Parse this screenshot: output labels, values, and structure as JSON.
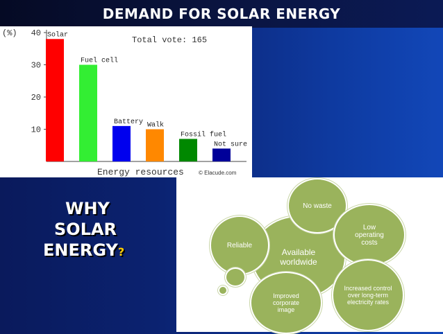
{
  "slide": {
    "title": "DEMAND FOR SOLAR ENERGY",
    "why_line1": "WHY",
    "why_line2": "SOLAR",
    "why_line3": "ENERGY",
    "why_mark": "?"
  },
  "chart_data": {
    "type": "bar",
    "categories": [
      "Solar",
      "Fuel cell",
      "Battery",
      "Walk",
      "Fossil fuel",
      "Not sure"
    ],
    "values": [
      38,
      30,
      11,
      10,
      7,
      4
    ],
    "colors": [
      "#ff0000",
      "#33ee33",
      "#0000ee",
      "#ff8800",
      "#008800",
      "#000099"
    ],
    "ylabel": "(%)",
    "xlabel": "Energy resources",
    "yticks": [
      10,
      20,
      30,
      40
    ],
    "ylim": [
      0,
      40
    ],
    "annotation": "Total vote: 165",
    "source": "© Elacude.com",
    "grid": false
  },
  "bubbles": {
    "center": "Available worldwide",
    "no_waste": "No waste",
    "low_costs": "Low operating costs",
    "reliable": "Reliable",
    "control": "Increased control over long-term electricity rates",
    "image": "Improved corporate image",
    "color": "#9ab35c"
  }
}
